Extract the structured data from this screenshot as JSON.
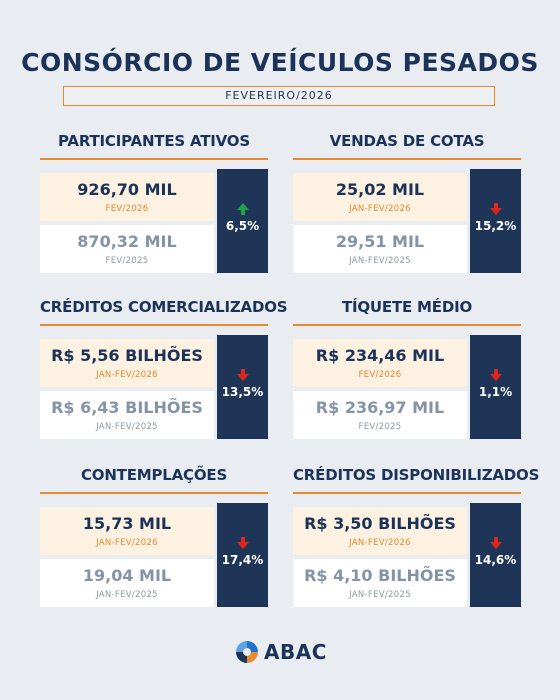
{
  "header": {
    "title": "CONSÓRCIO DE VEÍCULOS PESADOS",
    "period": "FEVEREIRO/2026"
  },
  "cards": [
    {
      "title": "PARTICIPANTES ATIVOS",
      "current_value": "926,70 MIL",
      "current_period": "FEV/2026",
      "previous_value": "870,32 MIL",
      "previous_period": "FEV/2025",
      "change": "6,5%",
      "direction": "up"
    },
    {
      "title": "VENDAS DE COTAS",
      "current_value": "25,02 MIL",
      "current_period": "JAN-FEV/2026",
      "previous_value": "29,51 MIL",
      "previous_period": "JAN-FEV/2025",
      "change": "15,2%",
      "direction": "down"
    },
    {
      "title": "CRÉDITOS COMERCIALIZADOS",
      "current_value": "R$ 5,56 BILHÕES",
      "current_period": "JAN-FEV/2026",
      "previous_value": "R$ 6,43 BILHÕES",
      "previous_period": "JAN-FEV/2025",
      "change": "13,5%",
      "direction": "down"
    },
    {
      "title": "TÍQUETE MÉDIO",
      "current_value": "R$ 234,46 MIL",
      "current_period": "FEV/2026",
      "previous_value": "R$ 236,97 MIL",
      "previous_period": "FEV/2025",
      "change": "1,1%",
      "direction": "down"
    },
    {
      "title": "CONTEMPLAÇÕES",
      "current_value": "15,73 MIL",
      "current_period": "JAN-FEV/2026",
      "previous_value": "19,04 MIL",
      "previous_period": "JAN-FEV/2025",
      "change": "17,4%",
      "direction": "down"
    },
    {
      "title": "CRÉDITOS DISPONIBILIZADOS",
      "current_value": "R$ 3,50 BILHÕES",
      "current_period": "JAN-FEV/2026",
      "previous_value": "R$ 4,10 BILHÕES",
      "previous_period": "JAN-FEV/2025",
      "change": "14,6%",
      "direction": "down"
    }
  ],
  "colors": {
    "navy": "#1b3358",
    "orange": "#e8892f",
    "up_arrow": "#1aa34a",
    "down_arrow": "#e0261b"
  },
  "footer": {
    "logo_text": "ABAC",
    "logo_icon": "abac-logo-icon"
  }
}
